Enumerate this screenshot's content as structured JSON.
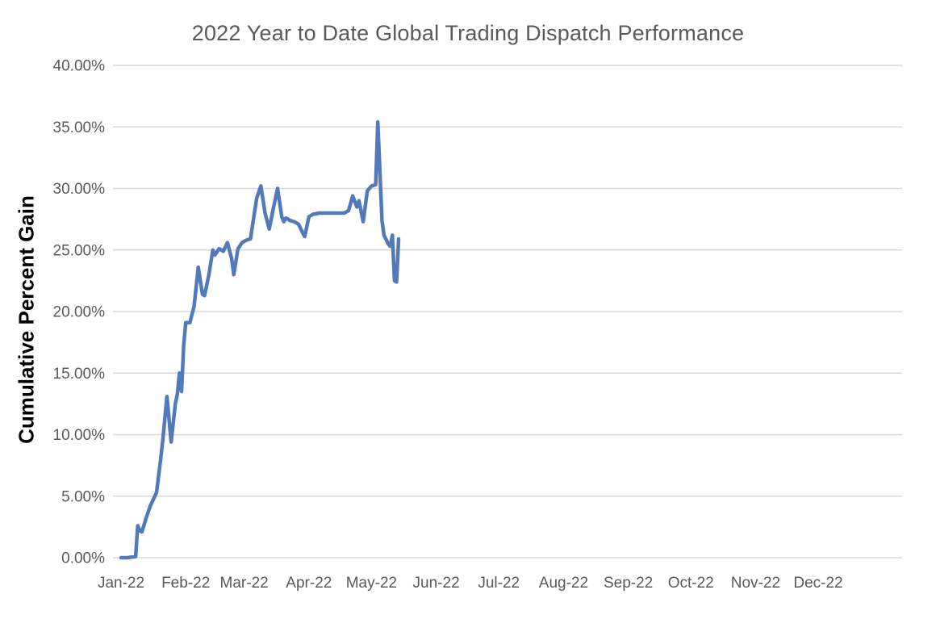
{
  "chart_data": {
    "type": "line",
    "title": "2022 Year to Date Global Trading Dispatch Performance",
    "xlabel": "",
    "ylabel": "Cumulative Percent Gain",
    "legend": "none",
    "grid": "horizontal",
    "ylim": [
      0,
      40
    ],
    "x_range_shown": [
      "Jan-22",
      "Dec-22"
    ],
    "data_range_plotted": [
      "2022-01-01",
      "2022-05-14"
    ],
    "x_tick_labels": [
      "Jan-22",
      "Feb-22",
      "Mar-22",
      "Apr-22",
      "May-22",
      "Jun-22",
      "Jul-22",
      "Aug-22",
      "Sep-22",
      "Oct-22",
      "Nov-22",
      "Dec-22"
    ],
    "y_ticks": [
      {
        "value": 0,
        "label": "0.00%"
      },
      {
        "value": 5,
        "label": "5.00%"
      },
      {
        "value": 10,
        "label": "10.00%"
      },
      {
        "value": 15,
        "label": "15.00%"
      },
      {
        "value": 20,
        "label": "20.00%"
      },
      {
        "value": 25,
        "label": "25.00%"
      },
      {
        "value": 30,
        "label": "30.00%"
      },
      {
        "value": 35,
        "label": "35.00%"
      },
      {
        "value": 40,
        "label": "40.00%"
      }
    ],
    "series": [
      {
        "name": "Cumulative Percent Gain",
        "unit": "%",
        "points": [
          [
            "2022-01-01",
            0.0
          ],
          [
            "2022-01-04",
            0.0
          ],
          [
            "2022-01-08",
            0.1
          ],
          [
            "2022-01-09",
            2.6
          ],
          [
            "2022-01-10",
            2.2
          ],
          [
            "2022-01-11",
            2.1
          ],
          [
            "2022-01-13",
            3.2
          ],
          [
            "2022-01-15",
            4.2
          ],
          [
            "2022-01-18",
            5.3
          ],
          [
            "2022-01-20",
            8.0
          ],
          [
            "2022-01-21",
            9.5
          ],
          [
            "2022-01-23",
            13.1
          ],
          [
            "2022-01-25",
            9.4
          ],
          [
            "2022-01-27",
            12.5
          ],
          [
            "2022-01-28",
            13.3
          ],
          [
            "2022-01-29",
            15.0
          ],
          [
            "2022-01-30",
            13.5
          ],
          [
            "2022-01-31",
            17.2
          ],
          [
            "2022-02-01",
            19.1
          ],
          [
            "2022-02-03",
            19.1
          ],
          [
            "2022-02-04",
            19.8
          ],
          [
            "2022-02-05",
            20.4
          ],
          [
            "2022-02-07",
            23.6
          ],
          [
            "2022-02-09",
            21.4
          ],
          [
            "2022-02-10",
            21.3
          ],
          [
            "2022-02-12",
            22.9
          ],
          [
            "2022-02-14",
            25.0
          ],
          [
            "2022-02-15",
            24.6
          ],
          [
            "2022-02-17",
            25.1
          ],
          [
            "2022-02-19",
            24.9
          ],
          [
            "2022-02-21",
            25.6
          ],
          [
            "2022-02-23",
            24.3
          ],
          [
            "2022-02-24",
            23.0
          ],
          [
            "2022-02-26",
            25.1
          ],
          [
            "2022-02-28",
            25.6
          ],
          [
            "2022-03-02",
            25.8
          ],
          [
            "2022-03-04",
            25.9
          ],
          [
            "2022-03-07",
            29.2
          ],
          [
            "2022-03-09",
            30.2
          ],
          [
            "2022-03-11",
            28.0
          ],
          [
            "2022-03-13",
            26.7
          ],
          [
            "2022-03-15",
            28.4
          ],
          [
            "2022-03-17",
            30.0
          ],
          [
            "2022-03-19",
            27.7
          ],
          [
            "2022-03-20",
            27.3
          ],
          [
            "2022-03-21",
            27.6
          ],
          [
            "2022-03-23",
            27.4
          ],
          [
            "2022-03-25",
            27.3
          ],
          [
            "2022-03-27",
            27.1
          ],
          [
            "2022-03-29",
            26.4
          ],
          [
            "2022-03-30",
            26.1
          ],
          [
            "2022-04-01",
            27.7
          ],
          [
            "2022-04-03",
            27.9
          ],
          [
            "2022-04-06",
            28.0
          ],
          [
            "2022-04-10",
            28.0
          ],
          [
            "2022-04-14",
            28.0
          ],
          [
            "2022-04-18",
            28.0
          ],
          [
            "2022-04-20",
            28.2
          ],
          [
            "2022-04-22",
            29.4
          ],
          [
            "2022-04-24",
            28.5
          ],
          [
            "2022-04-25",
            29.0
          ],
          [
            "2022-04-27",
            27.3
          ],
          [
            "2022-04-29",
            29.8
          ],
          [
            "2022-05-01",
            30.2
          ],
          [
            "2022-05-03",
            30.3
          ],
          [
            "2022-05-04",
            35.4
          ],
          [
            "2022-05-06",
            27.4
          ],
          [
            "2022-05-07",
            26.2
          ],
          [
            "2022-05-09",
            25.5
          ],
          [
            "2022-05-10",
            25.3
          ],
          [
            "2022-05-11",
            26.2
          ],
          [
            "2022-05-12",
            22.5
          ],
          [
            "2022-05-13",
            22.4
          ],
          [
            "2022-05-14",
            25.9
          ]
        ]
      }
    ],
    "colors": {
      "line": "#5279BA",
      "gridline": "#D9D9D9",
      "axis_text": "#595959",
      "title_text": "#595959",
      "axis_title_text": "#000000",
      "background": "#FFFFFF"
    }
  }
}
